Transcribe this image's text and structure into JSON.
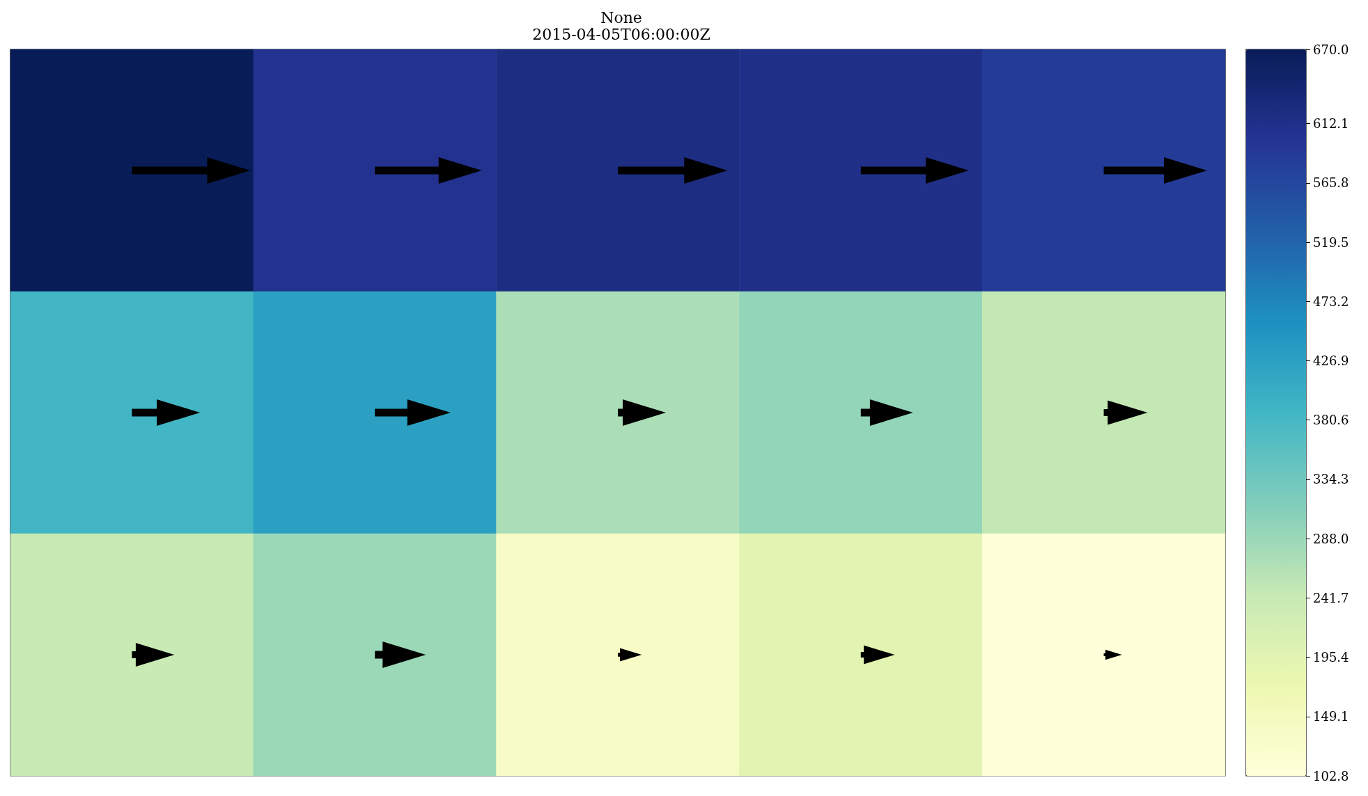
{
  "chart_data": {
    "type": "heatmap",
    "title": "None",
    "subtitle": "2015-04-05T06:00:00Z",
    "categories": [
      null,
      null,
      null,
      null,
      null
    ],
    "y_categories": [
      null,
      null,
      null
    ],
    "cells": [
      [
        670.0,
        605,
        620,
        612,
        585
      ],
      [
        385,
        428,
        272,
        296,
        248
      ],
      [
        240,
        288,
        135,
        192,
        102.8
      ]
    ],
    "clim": [
      102.8,
      670.0
    ],
    "cticks": [
      102.8,
      149.1,
      195.4,
      241.7,
      {
        "value": 288,
        "label": "288.0"
      },
      334.3,
      380.6,
      426.9,
      473.2,
      519.5,
      565.8,
      612.1,
      {
        "value": 670,
        "label": "670.0"
      }
    ]
  }
}
